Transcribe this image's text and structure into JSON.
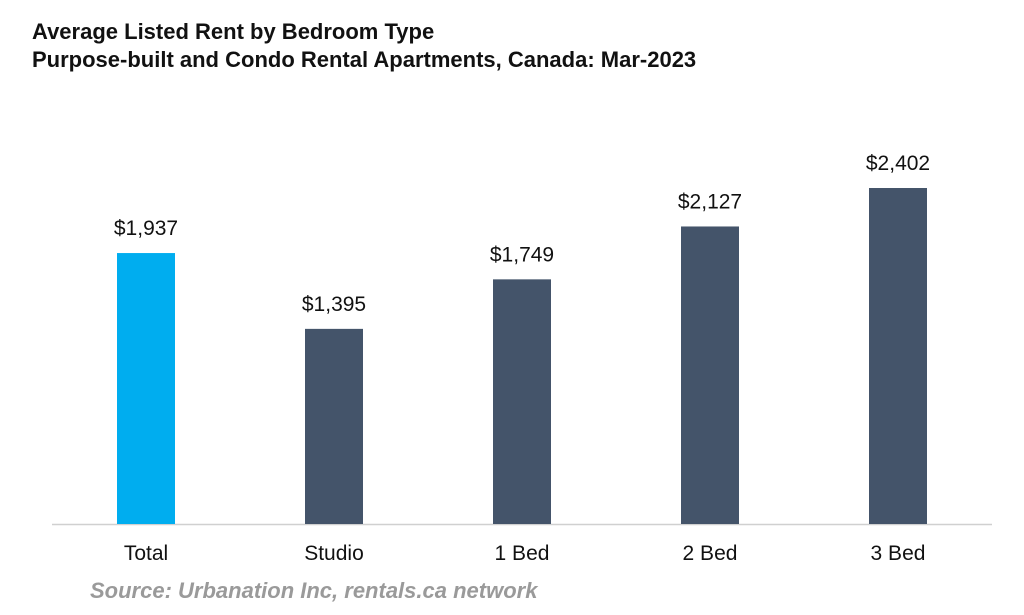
{
  "chart_data": {
    "type": "bar",
    "title": "Average Listed Rent by Bedroom Type",
    "subtitle": "Purpose-built and Condo Rental Apartments, Canada: Mar-2023",
    "categories": [
      "Total",
      "Studio",
      "1 Bed",
      "2 Bed",
      "3 Bed"
    ],
    "values": [
      1937,
      1395,
      1749,
      2127,
      2402
    ],
    "data_labels": [
      "$1,937",
      "$1,395",
      "$1,749",
      "$2,127",
      "$2,402"
    ],
    "bar_colors": [
      "#00adef",
      "#44546a",
      "#44546a",
      "#44546a",
      "#44546a"
    ],
    "xlabel": "",
    "ylabel": "",
    "ylim": [
      0,
      2500
    ],
    "grid": false,
    "legend": "none"
  },
  "source": "Source: Urbanation Inc, rentals.ca network",
  "colors": {
    "highlight": "#00adef",
    "bar": "#44546a",
    "baseline": "#d0d0d0",
    "source_text": "#9a9a9a"
  }
}
